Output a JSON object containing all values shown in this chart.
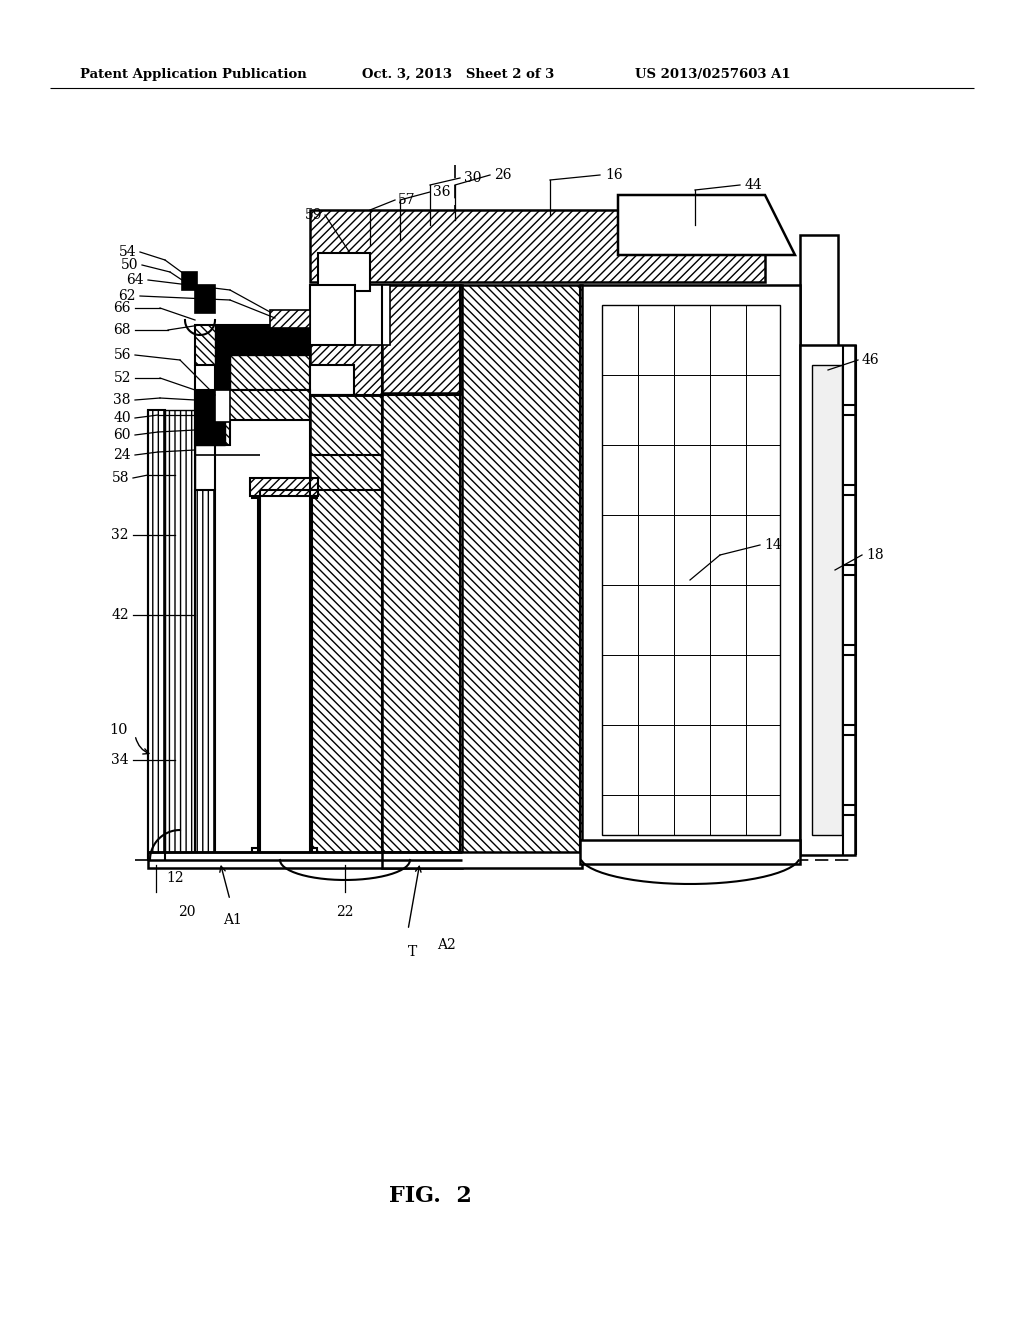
{
  "header_left": "Patent Application Publication",
  "header_center": "Oct. 3, 2013   Sheet 2 of 3",
  "header_right": "US 2013/0257603 A1",
  "fig_label": "FIG.  2",
  "fig_width": 10.24,
  "fig_height": 13.2,
  "bg": "#ffffff",
  "lc": "#000000"
}
